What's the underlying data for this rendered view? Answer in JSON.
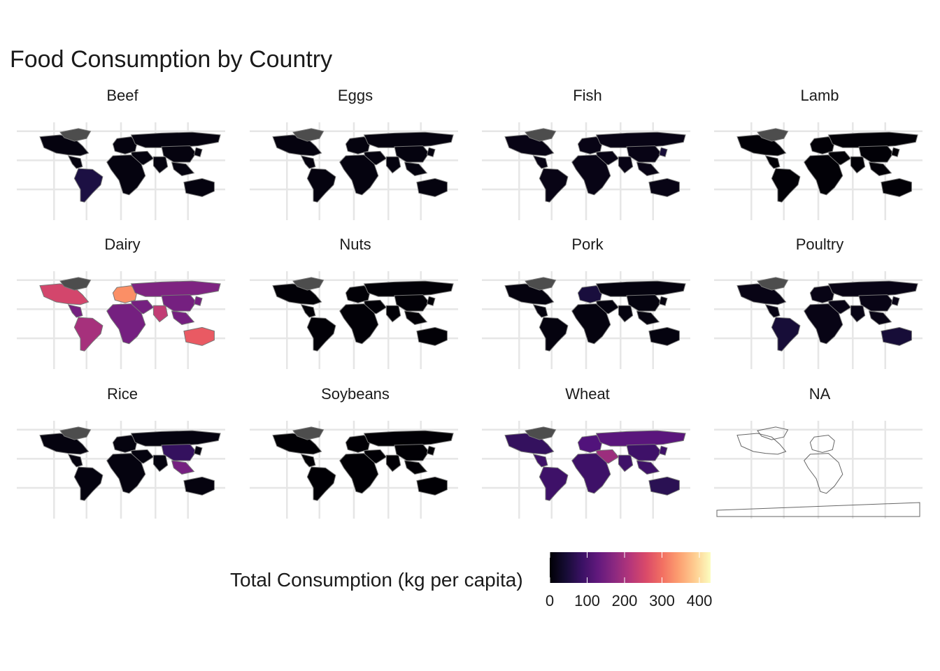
{
  "chart_data": {
    "type": "choropleth-facet",
    "title": "Food Consumption by Country",
    "legend": {
      "title": "Total Consumption (kg per capita)",
      "ticks": [
        0,
        100,
        200,
        300,
        400
      ],
      "tick_labels": [
        "0",
        "100",
        "200",
        "300",
        "400"
      ],
      "range": [
        0,
        430
      ],
      "palette": "magma",
      "position": "bottom"
    },
    "grid": true,
    "panels": [
      {
        "label": "Beef",
        "max_value": 55,
        "dominant_value": 10,
        "hotspots": [
          {
            "region": "South America",
            "value": 55
          }
        ]
      },
      {
        "label": "Eggs",
        "max_value": 20,
        "dominant_value": 10,
        "hotspots": []
      },
      {
        "label": "Fish",
        "max_value": 50,
        "dominant_value": 15,
        "hotspots": [
          {
            "region": "East Asia",
            "value": 45
          }
        ]
      },
      {
        "label": "Lamb",
        "max_value": 20,
        "dominant_value": 3,
        "hotspots": []
      },
      {
        "label": "Dairy",
        "max_value": 430,
        "dominant_value": 150,
        "hotspots": [
          {
            "region": "North America",
            "value": 250
          },
          {
            "region": "South America",
            "value": 200
          },
          {
            "region": "Europe",
            "value": 330
          },
          {
            "region": "Russia",
            "value": 160
          },
          {
            "region": "India",
            "value": 230
          },
          {
            "region": "Australia",
            "value": 280
          }
        ]
      },
      {
        "label": "Nuts",
        "max_value": 15,
        "dominant_value": 3,
        "hotspots": []
      },
      {
        "label": "Pork",
        "max_value": 55,
        "dominant_value": 10,
        "hotspots": [
          {
            "region": "Europe",
            "value": 50
          }
        ]
      },
      {
        "label": "Poultry",
        "max_value": 50,
        "dominant_value": 15,
        "hotspots": [
          {
            "region": "South America",
            "value": 45
          },
          {
            "region": "Australia",
            "value": 45
          }
        ]
      },
      {
        "label": "Rice",
        "max_value": 170,
        "dominant_value": 10,
        "hotspots": [
          {
            "region": "China",
            "value": 80
          },
          {
            "region": "Southeast Asia",
            "value": 150
          }
        ]
      },
      {
        "label": "Soybeans",
        "max_value": 15,
        "dominant_value": 1,
        "hotspots": []
      },
      {
        "label": "Wheat",
        "max_value": 200,
        "dominant_value": 90,
        "hotspots": [
          {
            "region": "North America",
            "value": 80
          },
          {
            "region": "Russia",
            "value": 120
          },
          {
            "region": "Europe",
            "value": 110
          },
          {
            "region": "Middle East",
            "value": 190
          },
          {
            "region": "Australia",
            "value": 70
          }
        ]
      },
      {
        "label": "NA",
        "max_value": null,
        "dominant_value": null,
        "hotspots": [],
        "outline_only": true
      }
    ]
  }
}
